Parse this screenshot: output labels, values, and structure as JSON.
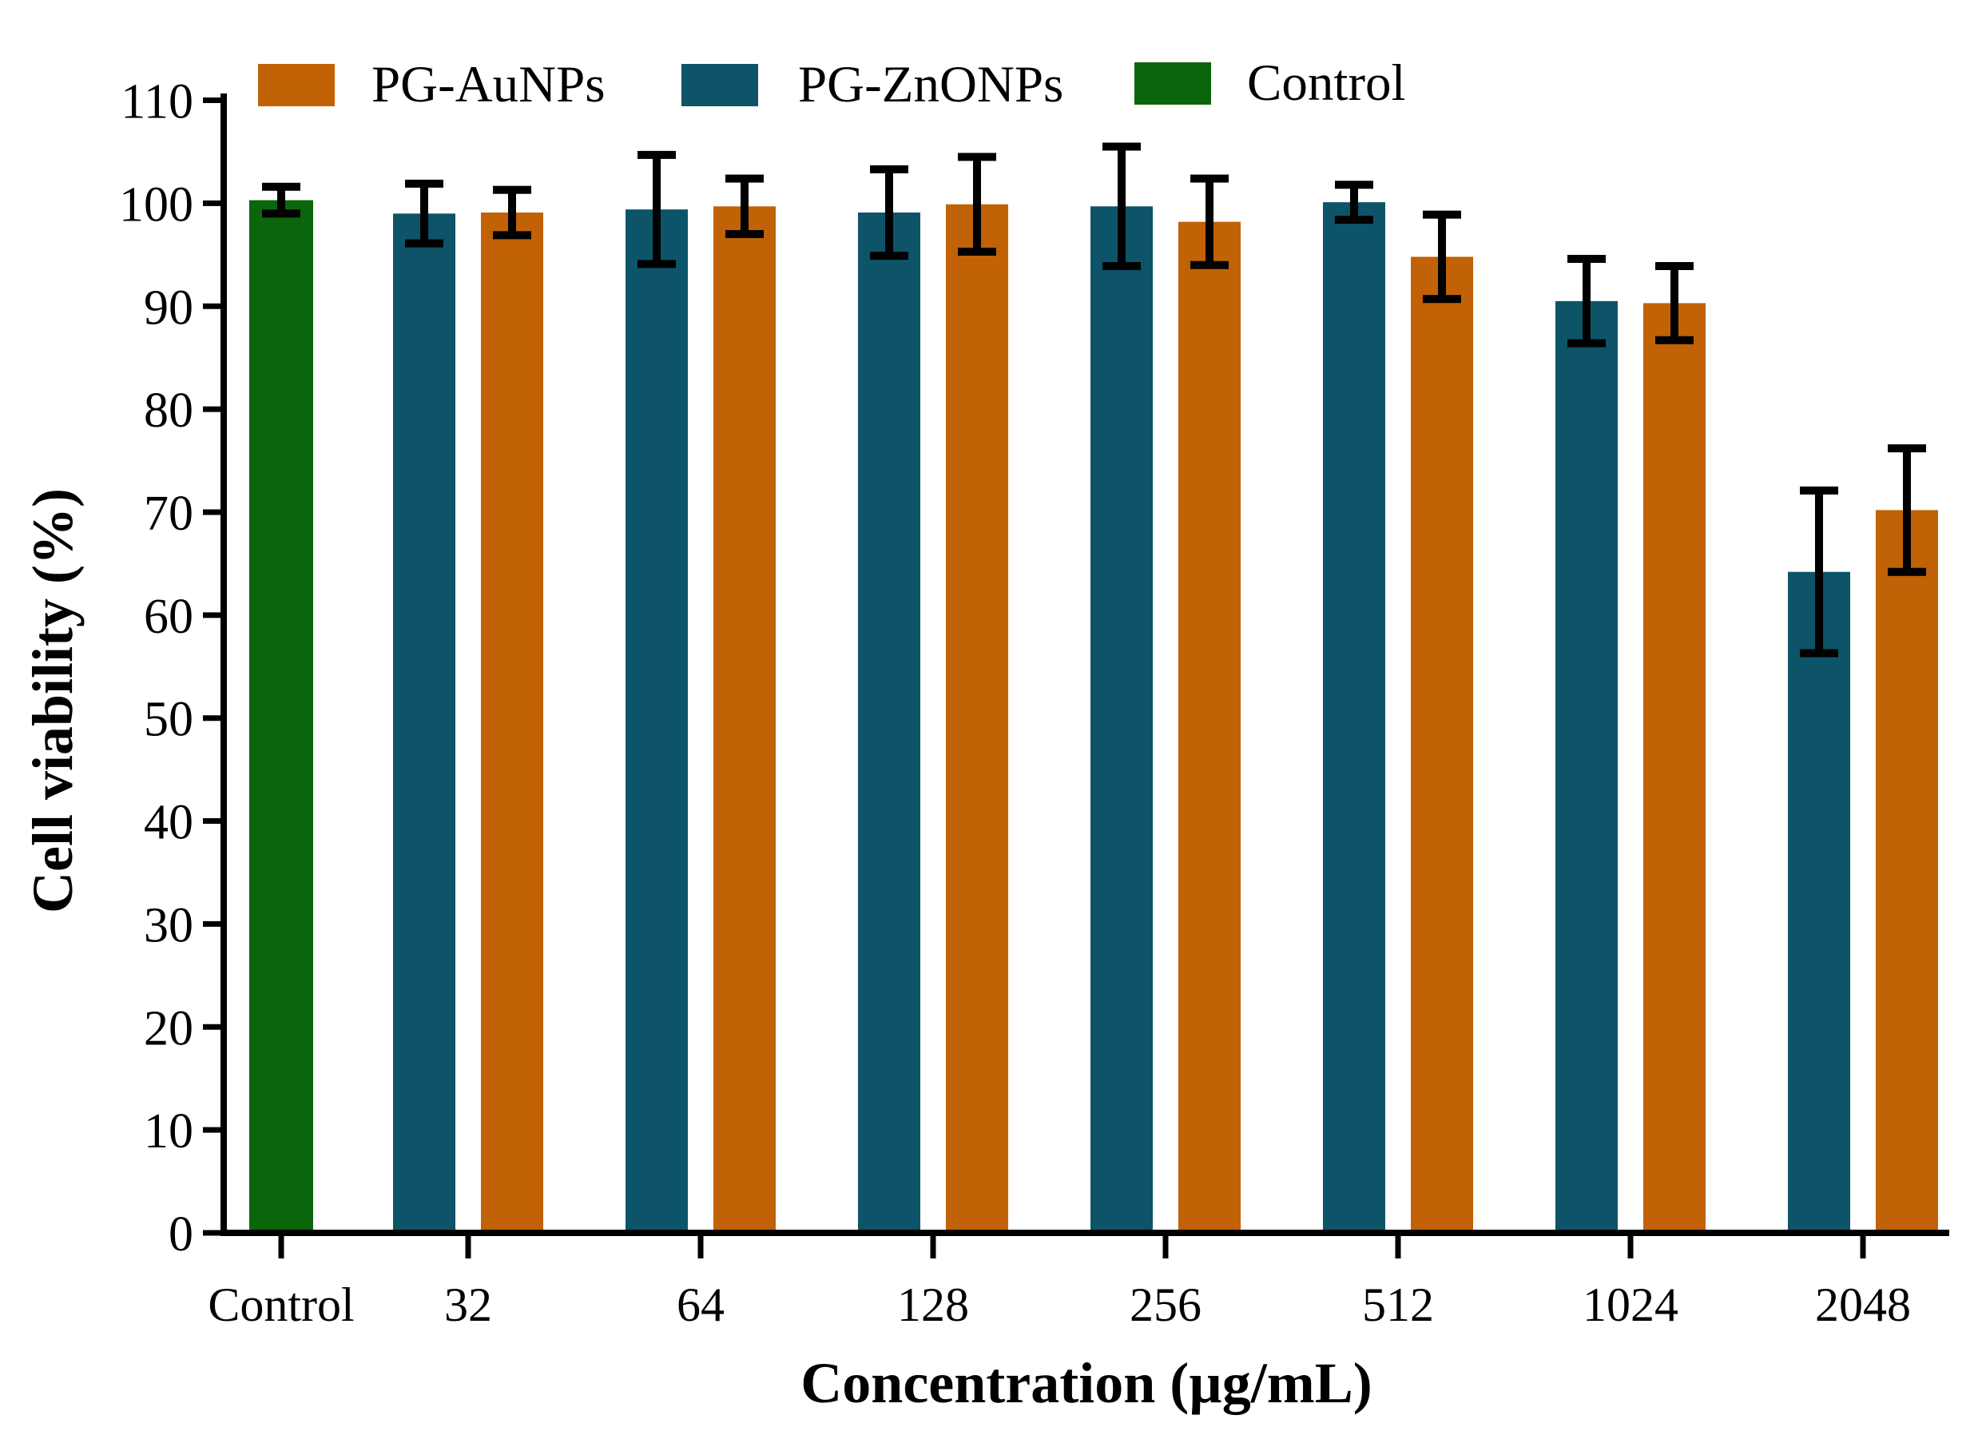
{
  "chart_data": {
    "type": "bar",
    "title": "",
    "xlabel": "Concentration (µg/mL)",
    "ylabel": "Cell viability (%)",
    "ylim": [
      0,
      110
    ],
    "yticks": [
      0,
      10,
      20,
      30,
      40,
      50,
      60,
      70,
      80,
      90,
      100,
      110
    ],
    "grid": false,
    "legend_position": "top",
    "error_bars": true,
    "categories": [
      "Control",
      "32",
      "64",
      "128",
      "256",
      "512",
      "1024",
      "2048"
    ],
    "series": [
      {
        "name": "PG-AuNPs",
        "color": "#C16206",
        "values": [
          null,
          99.1,
          99.7,
          99.9,
          98.2,
          94.8,
          90.3,
          70.2
        ],
        "errors": [
          null,
          2.2,
          2.7,
          4.6,
          4.2,
          4.1,
          3.6,
          6.0
        ]
      },
      {
        "name": "PG-ZnONPs",
        "color": "#0D5468",
        "values": [
          null,
          99.0,
          99.4,
          99.1,
          99.7,
          100.1,
          90.5,
          64.2
        ],
        "errors": [
          null,
          2.9,
          5.3,
          4.2,
          5.8,
          1.7,
          4.1,
          7.9
        ]
      },
      {
        "name": "Control",
        "color": "#0B660B",
        "values": [
          100.3,
          null,
          null,
          null,
          null,
          null,
          null,
          null
        ],
        "errors": [
          1.3,
          null,
          null,
          null,
          null,
          null,
          null,
          null
        ]
      }
    ],
    "axis_color": "#000000",
    "background_color": "#FFFFFF"
  }
}
